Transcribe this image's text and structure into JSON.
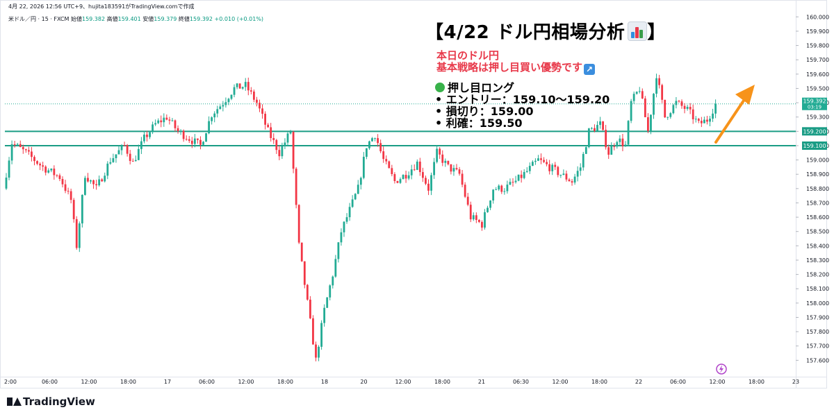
{
  "credit": "4月 22, 2026 12:56 UTC+9、hujita183591がTradingView.comで作成",
  "ohlc": {
    "symbol": "米ドル／円 · 15 · FXCM",
    "open_label": "始値",
    "open": "159.382",
    "high_label": "高値",
    "high": "159.401",
    "low_label": "安値",
    "low": "159.379",
    "close_label": "終値",
    "close": "159.392",
    "change": "+0.010 (+0.01%)"
  },
  "headline": "【4/22 ドル円相場分析",
  "headline_end": "】",
  "strategy": {
    "line1": "本日のドル円",
    "line2": "基本戦略は押し目買い優勢です"
  },
  "plan": {
    "title": "押し目ロング",
    "entry": "• エントリー：159.10〜159.20",
    "stop": "• 損切り：159.00",
    "take": "• 利確：159.50"
  },
  "brand": "TradingView",
  "colors": {
    "up": "#22ab94",
    "down": "#f23645",
    "level": "#1a9c85",
    "price_tag": "#22ab94",
    "arrow": "#f7931a",
    "headline_red": "#e8394a"
  },
  "chart_data": {
    "type": "candlestick",
    "ylim": [
      157.5,
      160.05
    ],
    "y_ticks": [
      "160.000",
      "159.900",
      "159.800",
      "159.700",
      "159.600",
      "159.500",
      "159.400",
      "159.300",
      "159.200",
      "159.100",
      "159.000",
      "158.900",
      "158.800",
      "158.700",
      "158.600",
      "158.500",
      "158.400",
      "158.300",
      "158.200",
      "158.100",
      "158.000",
      "157.900",
      "157.800",
      "157.700",
      "157.600"
    ],
    "x_ticks": [
      "2:00",
      "06:00",
      "12:00",
      "18:00",
      "17",
      "06:00",
      "12:00",
      "18:00",
      "18",
      "20",
      "12:00",
      "18:00",
      "21",
      "06:30",
      "12:00",
      "18:00",
      "22",
      "06:00",
      "12:00",
      "18:00",
      "23"
    ],
    "levels": [
      {
        "value": 159.2,
        "label": "159.200"
      },
      {
        "value": 159.1,
        "label": "159.100"
      }
    ],
    "current_price": {
      "value": 159.392,
      "label": "159.392",
      "countdown": "03:19"
    },
    "path_points": [
      [
        0,
        158.8
      ],
      [
        3,
        159.12
      ],
      [
        8,
        159.05
      ],
      [
        14,
        158.95
      ],
      [
        20,
        158.88
      ],
      [
        24,
        158.72
      ],
      [
        26,
        158.4
      ],
      [
        29,
        158.9
      ],
      [
        33,
        158.8
      ],
      [
        38,
        159.0
      ],
      [
        43,
        159.1
      ],
      [
        46,
        158.98
      ],
      [
        50,
        159.15
      ],
      [
        54,
        159.25
      ],
      [
        58,
        159.3
      ],
      [
        62,
        159.2
      ],
      [
        66,
        159.15
      ],
      [
        70,
        159.1
      ],
      [
        74,
        159.32
      ],
      [
        78,
        159.4
      ],
      [
        82,
        159.5
      ],
      [
        86,
        159.52
      ],
      [
        90,
        159.4
      ],
      [
        94,
        159.2
      ],
      [
        98,
        159.05
      ],
      [
        102,
        159.2
      ],
      [
        105,
        158.4
      ],
      [
        108,
        158.0
      ],
      [
        111,
        157.6
      ],
      [
        114,
        157.95
      ],
      [
        117,
        158.2
      ],
      [
        120,
        158.5
      ],
      [
        123,
        158.65
      ],
      [
        126,
        158.8
      ],
      [
        129,
        159.1
      ],
      [
        132,
        159.18
      ],
      [
        135,
        159.0
      ],
      [
        139,
        158.85
      ],
      [
        143,
        158.9
      ],
      [
        147,
        158.98
      ],
      [
        151,
        158.8
      ],
      [
        154,
        159.05
      ],
      [
        158,
        158.95
      ],
      [
        162,
        158.9
      ],
      [
        166,
        158.6
      ],
      [
        170,
        158.55
      ],
      [
        174,
        158.8
      ],
      [
        178,
        158.8
      ],
      [
        182,
        158.85
      ],
      [
        186,
        158.92
      ],
      [
        190,
        159.0
      ],
      [
        194,
        158.95
      ],
      [
        198,
        158.9
      ],
      [
        202,
        158.85
      ],
      [
        205,
        158.95
      ],
      [
        208,
        159.2
      ],
      [
        212,
        159.25
      ],
      [
        215,
        159.05
      ],
      [
        218,
        159.15
      ],
      [
        221,
        159.1
      ],
      [
        223,
        159.4
      ],
      [
        226,
        159.5
      ],
      [
        229,
        159.2
      ],
      [
        232,
        159.6
      ],
      [
        235,
        159.3
      ],
      [
        239,
        159.4
      ],
      [
        243,
        159.35
      ],
      [
        247,
        159.25
      ],
      [
        250,
        159.28
      ],
      [
        253,
        159.39
      ]
    ]
  }
}
